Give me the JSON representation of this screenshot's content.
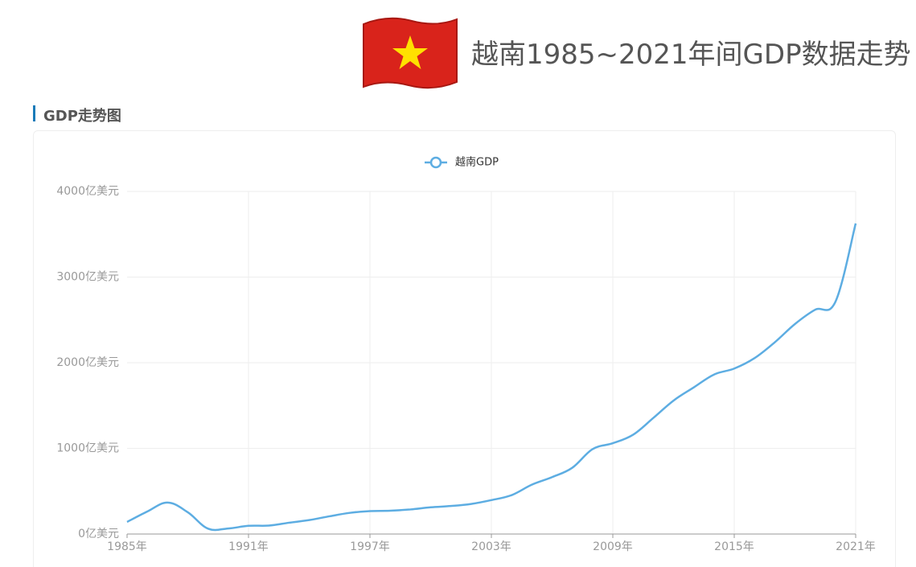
{
  "page": {
    "title": "越南1985~2021年间GDP数据走势",
    "section_title": "GDP走势图"
  },
  "chart_data": {
    "type": "line",
    "categories": [
      "1985年",
      null,
      null,
      null,
      null,
      null,
      "1991年",
      null,
      null,
      null,
      null,
      null,
      "1997年",
      null,
      null,
      null,
      null,
      null,
      "2003年",
      null,
      null,
      null,
      null,
      null,
      "2009年",
      null,
      null,
      null,
      null,
      null,
      "2015年",
      null,
      null,
      null,
      null,
      null,
      "2021年"
    ],
    "series": [
      {
        "name": "越南GDP",
        "color": "#5dade2",
        "values": [
          141,
          263,
          367,
          254,
          63,
          65,
          96,
          99,
          132,
          163,
          207,
          247,
          268,
          272,
          287,
          312,
          327,
          351,
          396,
          454,
          576,
          664,
          774,
          991,
          1060,
          1159,
          1355,
          1558,
          1712,
          1862,
          1932,
          2053,
          2238,
          2452,
          2619,
          2712,
          3626
        ]
      }
    ],
    "ylim": [
      0,
      4000
    ],
    "yticks": [
      {
        "value": 0,
        "label": "0亿美元"
      },
      {
        "value": 1000,
        "label": "1000亿美元"
      },
      {
        "value": 2000,
        "label": "2000亿美元"
      },
      {
        "value": 3000,
        "label": "3000亿美元"
      },
      {
        "value": 4000,
        "label": "4000亿美元"
      }
    ],
    "grid": true,
    "legend": "top"
  }
}
